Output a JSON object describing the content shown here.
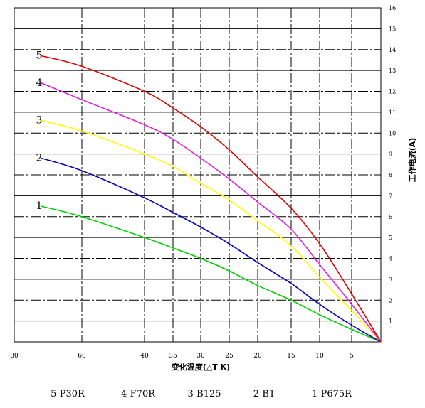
{
  "chart_data": {
    "type": "line",
    "xlabel": "变化温度(△T K)",
    "ylabel": "工作电流(A)",
    "x_ticks": [
      "80",
      "60",
      "40",
      "35",
      "30",
      "25",
      "20",
      "15",
      "10",
      "5"
    ],
    "y_ticks": [
      "1",
      "2",
      "3",
      "4",
      "5",
      "6",
      "7",
      "8",
      "9",
      "10",
      "11",
      "12",
      "13",
      "14",
      "15",
      "16"
    ],
    "ylim": [
      0,
      16
    ],
    "grid": true,
    "series": [
      {
        "name": "5-P30R",
        "label": "5",
        "color": "#e00000",
        "points": [
          [
            72,
            13.7
          ],
          [
            60,
            13.2
          ],
          [
            40,
            12.0
          ],
          [
            35,
            11.2
          ],
          [
            30,
            10.3
          ],
          [
            25,
            9.2
          ],
          [
            20,
            7.9
          ],
          [
            15,
            6.4
          ],
          [
            10,
            4.7
          ],
          [
            5,
            2.3
          ],
          [
            0,
            0
          ]
        ]
      },
      {
        "name": "F70R",
        "label": "4",
        "color": "#e020e0",
        "points": [
          [
            72,
            12.4
          ],
          [
            60,
            11.6
          ],
          [
            40,
            10.4
          ],
          [
            35,
            9.7
          ],
          [
            30,
            8.8
          ],
          [
            25,
            7.8
          ],
          [
            20,
            6.7
          ],
          [
            15,
            5.4
          ],
          [
            10,
            3.7
          ],
          [
            5,
            1.8
          ],
          [
            0,
            0
          ]
        ]
      },
      {
        "name": "B125",
        "label": "3",
        "color": "#ffff00",
        "points": [
          [
            72,
            10.6
          ],
          [
            60,
            10.1
          ],
          [
            40,
            9.0
          ],
          [
            35,
            8.4
          ],
          [
            30,
            7.6
          ],
          [
            25,
            6.8
          ],
          [
            20,
            5.8
          ],
          [
            15,
            4.6
          ],
          [
            10,
            3.1
          ],
          [
            5,
            1.5
          ],
          [
            0,
            0
          ]
        ]
      },
      {
        "name": "B1",
        "label": "2",
        "color": "#0000c0",
        "points": [
          [
            72,
            8.8
          ],
          [
            60,
            8.2
          ],
          [
            40,
            6.9
          ],
          [
            35,
            6.2
          ],
          [
            30,
            5.5
          ],
          [
            25,
            4.7
          ],
          [
            20,
            3.8
          ],
          [
            15,
            2.8
          ],
          [
            10,
            1.8
          ],
          [
            5,
            0.8
          ],
          [
            0,
            0
          ]
        ]
      },
      {
        "name": "P675R",
        "label": "1",
        "color": "#00d000",
        "points": [
          [
            72,
            6.5
          ],
          [
            60,
            6.0
          ],
          [
            40,
            5.0
          ],
          [
            35,
            4.5
          ],
          [
            30,
            4.0
          ],
          [
            25,
            3.4
          ],
          [
            20,
            2.7
          ],
          [
            15,
            2.0
          ],
          [
            10,
            1.3
          ],
          [
            5,
            0.6
          ],
          [
            0,
            0
          ]
        ]
      }
    ],
    "legend": [
      "5-P30R",
      "4-F70R",
      "3-B125",
      "2-B1",
      "1-P675R"
    ]
  }
}
